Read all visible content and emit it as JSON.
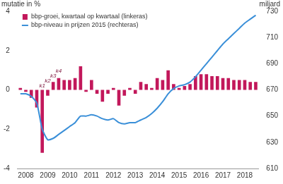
{
  "chart_data": {
    "type": "bar",
    "y_label": "mutatie in %",
    "y2_label": "miljard",
    "categories": [
      null,
      "2008",
      null,
      null,
      null,
      "2009",
      null,
      null,
      null,
      "2010",
      null,
      null,
      null,
      "2011",
      null,
      null,
      null,
      "2012",
      null,
      null,
      null,
      "2013",
      null,
      null,
      null,
      "2014",
      null,
      null,
      null,
      "2015",
      null,
      null,
      null,
      "2016",
      null,
      null,
      null,
      "2017",
      null,
      null,
      null,
      "2018",
      null,
      null
    ],
    "series": [
      {
        "name": "bbp-groei, kwartaal op kwartaal (linkeras)",
        "type": "bar",
        "axis": "y",
        "color": "#c2185b",
        "values": [
          0.1,
          -0.1,
          -0.4,
          -0.9,
          -3.2,
          -0.3,
          0.4,
          0.6,
          0.5,
          0.5,
          0.6,
          1.2,
          -0.1,
          0.5,
          -0.2,
          -0.6,
          -0.2,
          0.1,
          -0.8,
          -0.3,
          0.1,
          -0.2,
          0.4,
          0.3,
          0.1,
          0.6,
          0.5,
          1.0,
          0.3,
          0.1,
          0.2,
          0.3,
          0.7,
          0.8,
          0.8,
          0.7,
          0.7,
          0.6,
          0.6,
          0.5,
          0.5,
          0.5,
          0.4,
          0.4
        ]
      },
      {
        "name": "bbp-niveau in prijzen 2015 (rechteras)",
        "type": "line",
        "axis": "y2",
        "color": "#3a8fd8",
        "values": [
          667,
          667,
          665,
          660,
          640,
          632,
          633,
          636,
          639,
          642,
          645,
          650,
          650,
          651,
          650,
          648,
          647,
          648,
          645,
          644,
          645,
          645,
          647,
          649,
          652,
          656,
          661,
          667,
          671,
          673,
          674,
          676,
          680,
          685,
          690,
          695,
          700,
          705,
          709,
          713,
          717,
          721,
          724,
          727
        ]
      }
    ],
    "annotations": [
      {
        "text": "k1",
        "index": 4
      },
      {
        "text": "k2",
        "index": 5
      },
      {
        "text": "k3",
        "index": 6
      },
      {
        "text": "k4",
        "index": 7
      }
    ],
    "ylim": [
      -4,
      4
    ],
    "yticks": [
      -4,
      -2,
      0,
      2,
      4
    ],
    "y2lim": [
      610,
      730
    ],
    "y2ticks": [
      610,
      630,
      650,
      670,
      690,
      710,
      730
    ],
    "grid": false,
    "legend": "top-left"
  }
}
